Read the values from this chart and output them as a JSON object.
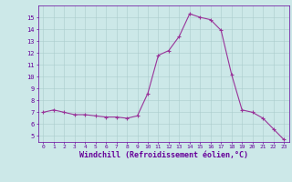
{
  "x": [
    0,
    1,
    2,
    3,
    4,
    5,
    6,
    7,
    8,
    9,
    10,
    11,
    12,
    13,
    14,
    15,
    16,
    17,
    18,
    19,
    20,
    21,
    22,
    23
  ],
  "y": [
    7.0,
    7.2,
    7.0,
    6.8,
    6.8,
    6.7,
    6.6,
    6.6,
    6.5,
    6.7,
    8.6,
    11.8,
    12.2,
    13.4,
    15.3,
    15.0,
    14.8,
    13.9,
    10.2,
    7.2,
    7.0,
    6.5,
    5.6,
    4.7
  ],
  "line_color": "#993399",
  "marker": "+",
  "marker_color": "#993399",
  "bg_color": "#cce8e8",
  "grid_color": "#aacccc",
  "xlabel": "Windchill (Refroidissement éolien,°C)",
  "xlabel_color": "#660099",
  "tick_color": "#660099",
  "xlim": [
    -0.5,
    23.5
  ],
  "ylim": [
    4.5,
    16.0
  ],
  "yticks": [
    5,
    6,
    7,
    8,
    9,
    10,
    11,
    12,
    13,
    14,
    15
  ],
  "xticks": [
    0,
    1,
    2,
    3,
    4,
    5,
    6,
    7,
    8,
    9,
    10,
    11,
    12,
    13,
    14,
    15,
    16,
    17,
    18,
    19,
    20,
    21,
    22,
    23
  ],
  "line_width": 0.8,
  "marker_size": 3.0
}
